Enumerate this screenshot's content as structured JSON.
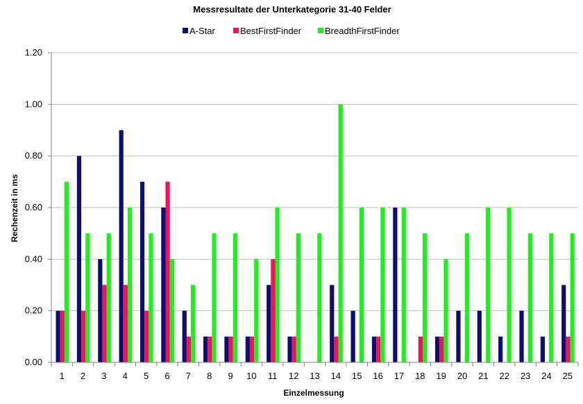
{
  "chart_data": {
    "type": "bar",
    "title": "Messresultate der Unterkategorie 31-40 Felder",
    "xlabel": "Einzelmessung",
    "ylabel": "Rechenzeit in ms",
    "ylim": [
      0,
      1.2
    ],
    "yticks": [
      "0.00",
      "0.20",
      "0.40",
      "0.60",
      "0.80",
      "1.00",
      "1.20"
    ],
    "grid": true,
    "legend_position": "top",
    "categories": [
      "1",
      "2",
      "3",
      "4",
      "5",
      "6",
      "7",
      "8",
      "9",
      "10",
      "11",
      "12",
      "13",
      "14",
      "15",
      "16",
      "17",
      "18",
      "19",
      "20",
      "21",
      "22",
      "23",
      "24",
      "25"
    ],
    "series": [
      {
        "name": "A-Star",
        "color": "#0d0d73",
        "values": [
          0.2,
          0.8,
          0.4,
          0.9,
          0.7,
          0.6,
          0.2,
          0.1,
          0.1,
          0.1,
          0.3,
          0.1,
          0,
          0.3,
          0.2,
          0.1,
          0.6,
          0,
          0.1,
          0.2,
          0.2,
          0.1,
          0.2,
          0.1,
          0.3
        ]
      },
      {
        "name": "BestFirstFinder",
        "color": "#f0135a",
        "values": [
          0.2,
          0.2,
          0.3,
          0.3,
          0.2,
          0.7,
          0.1,
          0.1,
          0.1,
          0.1,
          0.4,
          0.1,
          0,
          0.1,
          0,
          0.1,
          0,
          0.1,
          0.1,
          0,
          0,
          0,
          0,
          0,
          0.1
        ]
      },
      {
        "name": "BreadthFirstFinder",
        "color": "#1ef01e",
        "values": [
          0.7,
          0.5,
          0.5,
          0.6,
          0.5,
          0.4,
          0.3,
          0.5,
          0.5,
          0.4,
          0.6,
          0.5,
          0.5,
          1.0,
          0.6,
          0.6,
          0.6,
          0.5,
          0.4,
          0.5,
          0.6,
          0.6,
          0.5,
          0.5,
          0.5
        ]
      }
    ]
  }
}
